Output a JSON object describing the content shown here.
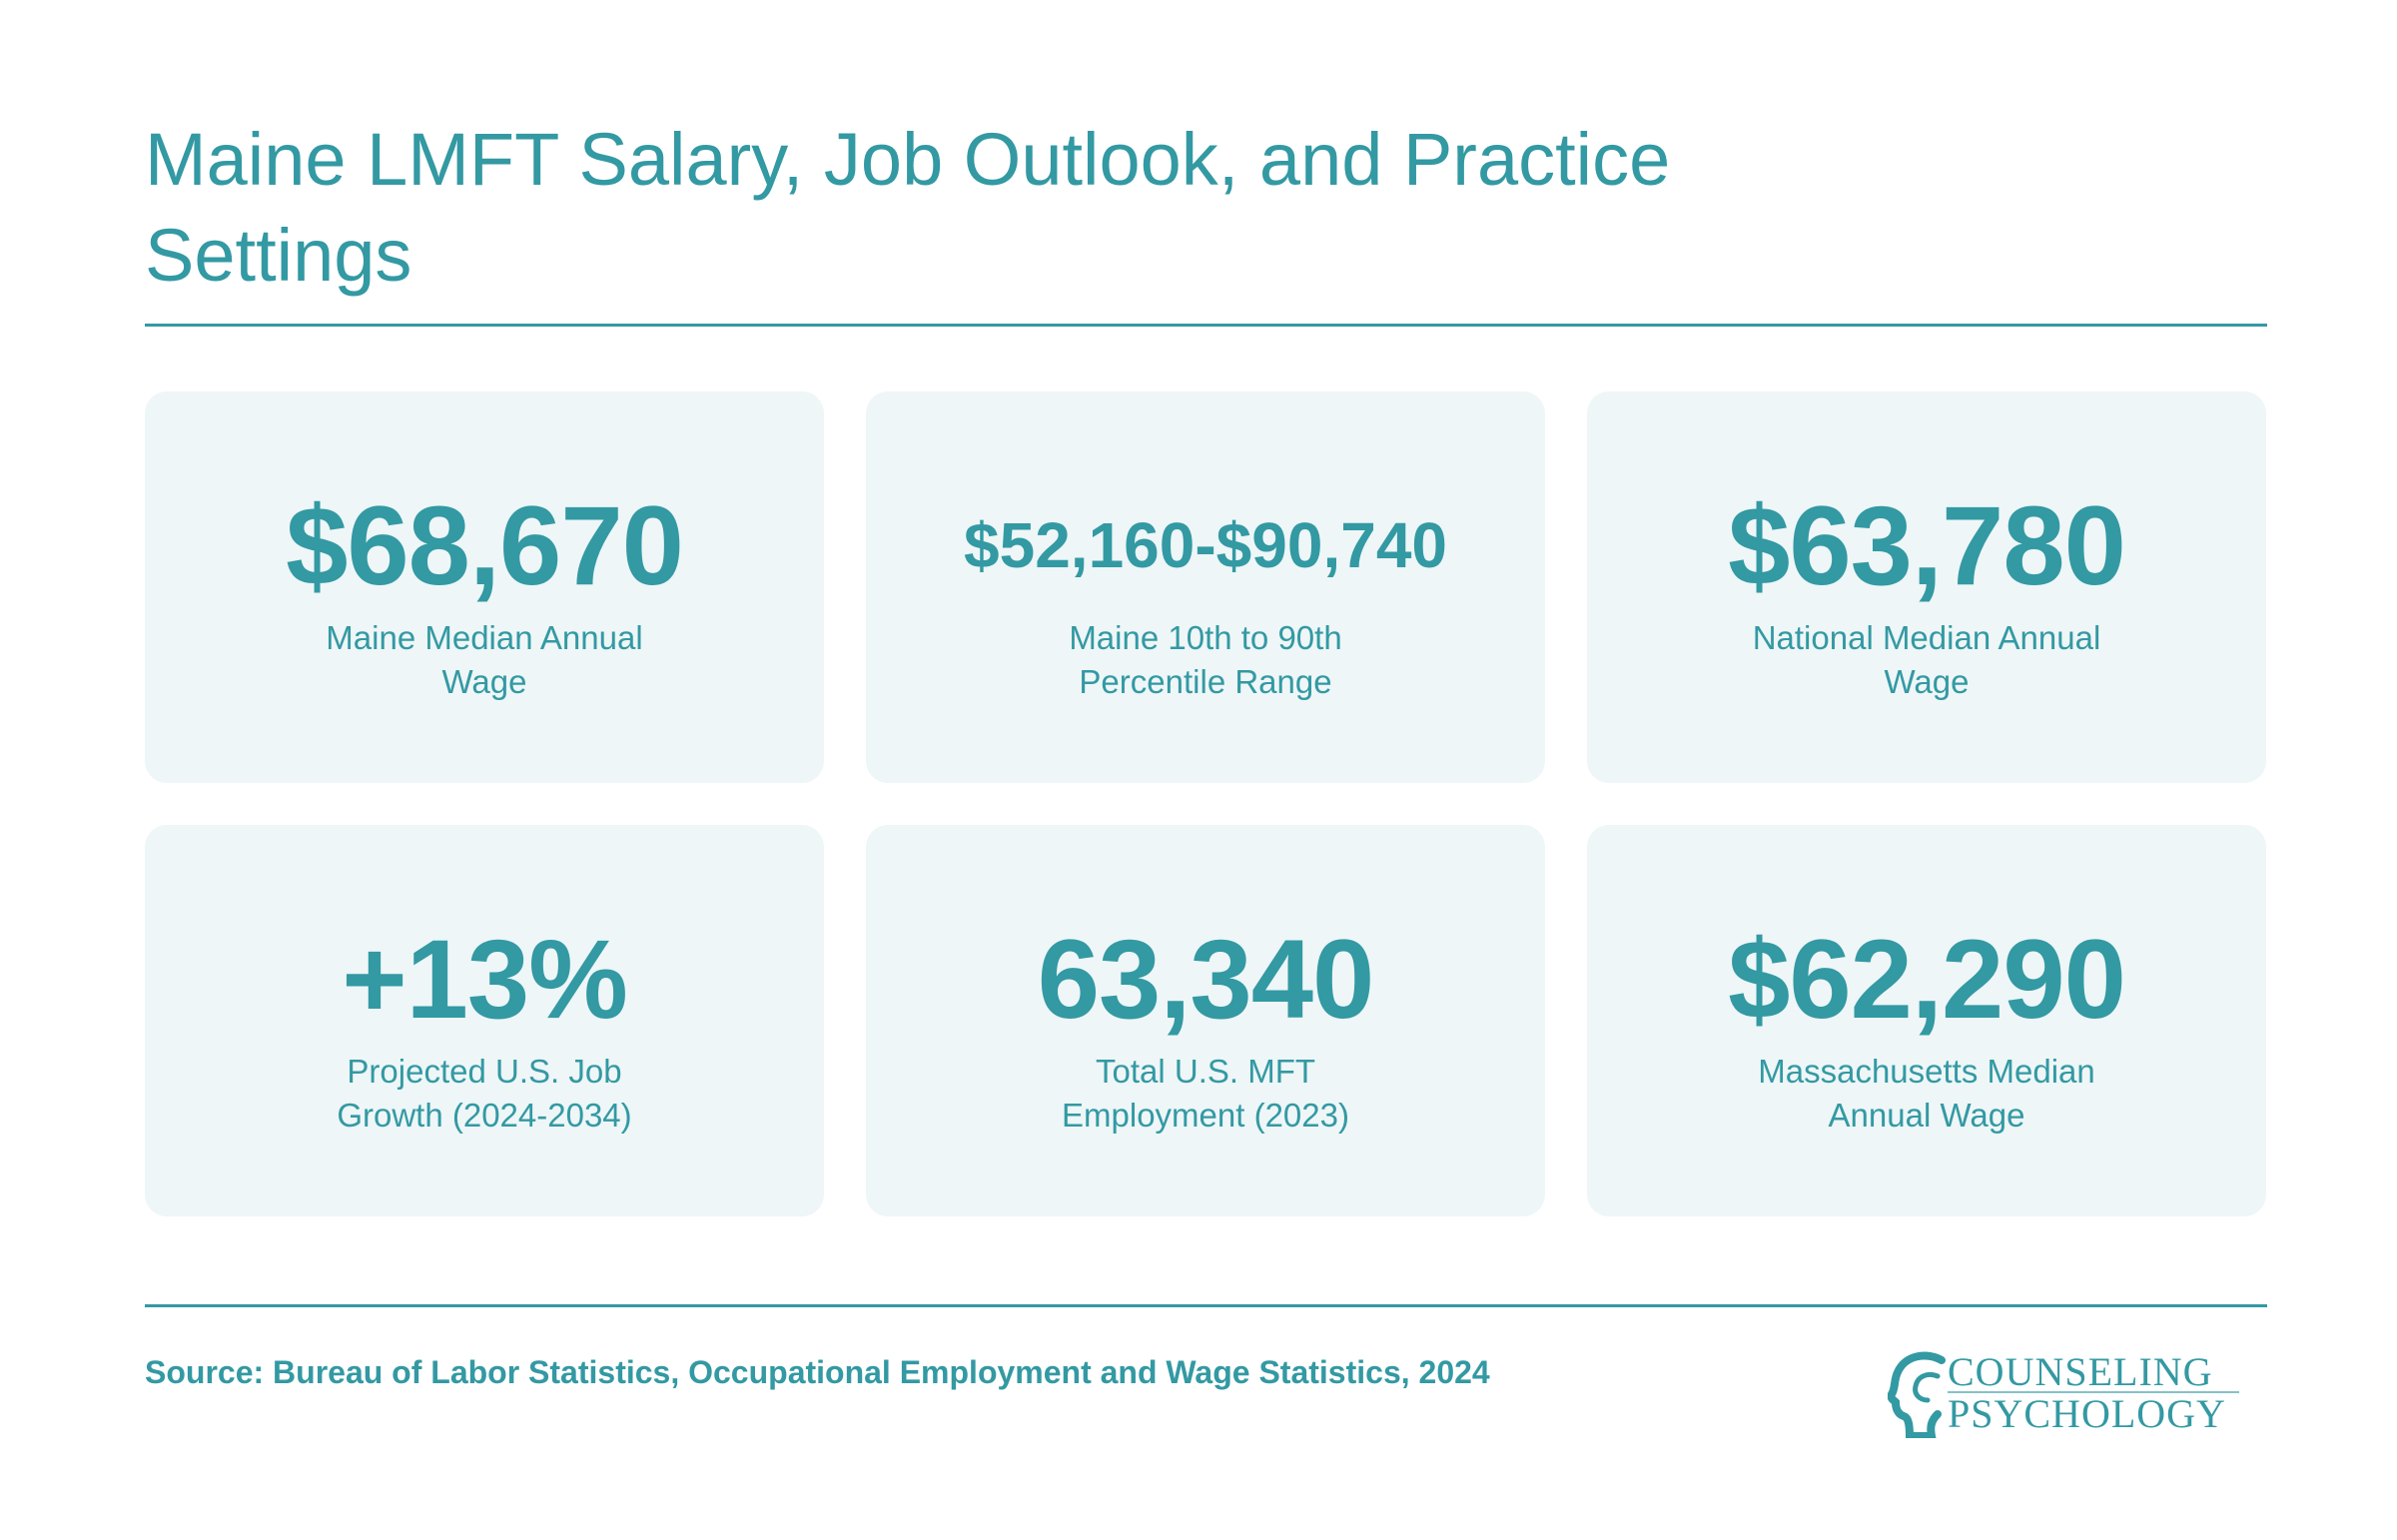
{
  "title": "Maine LMFT Salary, Job Outlook, and Practice Settings",
  "cards": [
    {
      "value": "$68,670",
      "label": "Maine Median Annual Wage"
    },
    {
      "value": "$52,160-$90,740",
      "label": "Maine 10th to 90th Percentile Range"
    },
    {
      "value": "$63,780",
      "label": "National Median Annual Wage"
    },
    {
      "value": "+13%",
      "label": "Projected U.S. Job Growth (2024-2034)"
    },
    {
      "value": "63,340",
      "label": "Total U.S. MFT Employment (2023)"
    },
    {
      "value": "$62,290",
      "label": "Massachusetts Median Annual Wage"
    }
  ],
  "source": "Source: Bureau of Labor Statistics, Occupational Employment and Wage Statistics, 2024",
  "logo": {
    "line1": "COUNSELING",
    "line2": "PSYCHOLOGY",
    "icon": "head-silhouette-icon"
  },
  "colors": {
    "accent": "#3399a3",
    "card_bg": "#eef6f7"
  }
}
